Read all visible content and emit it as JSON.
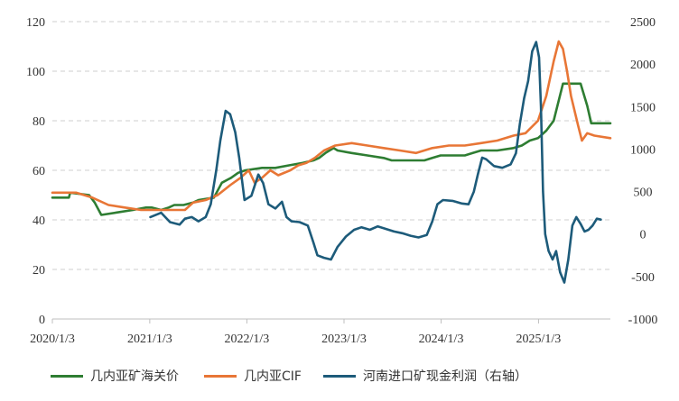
{
  "chart_data": {
    "type": "line",
    "x_axis": {
      "labels": [
        "2020/1/3",
        "2021/1/3",
        "2022/1/3",
        "2023/1/3",
        "2024/1/3",
        "2025/1/3"
      ],
      "start": "2020-01-03",
      "end": "2025-09-30"
    },
    "y_left": {
      "min": 0,
      "max": 120,
      "step": 20
    },
    "y_right": {
      "min": -1000,
      "max": 2500,
      "step": 500
    },
    "grid": "horizontal dashed",
    "legend_position": "bottom",
    "series": [
      {
        "name": "几内亚矿海关价",
        "axis": "left",
        "color": "#2e7d32",
        "points": [
          [
            "2020-01-03",
            49
          ],
          [
            "2020-03-05",
            49
          ],
          [
            "2020-03-10",
            51
          ],
          [
            "2020-05-20",
            50
          ],
          [
            "2020-06-10",
            47
          ],
          [
            "2020-07-05",
            42
          ],
          [
            "2020-09-01",
            43
          ],
          [
            "2020-11-01",
            44
          ],
          [
            "2020-12-20",
            45
          ],
          [
            "2021-01-10",
            45
          ],
          [
            "2021-02-15",
            44
          ],
          [
            "2021-03-15",
            45
          ],
          [
            "2021-04-05",
            46
          ],
          [
            "2021-05-10",
            46
          ],
          [
            "2021-06-15",
            47
          ],
          [
            "2021-07-05",
            48
          ],
          [
            "2021-09-01",
            49
          ],
          [
            "2021-10-01",
            55
          ],
          [
            "2021-11-05",
            57
          ],
          [
            "2021-12-01",
            59
          ],
          [
            "2021-12-28",
            60
          ],
          [
            "2022-03-01",
            61
          ],
          [
            "2022-04-20",
            61
          ],
          [
            "2022-06-10",
            62
          ],
          [
            "2022-08-01",
            63
          ],
          [
            "2022-09-10",
            64
          ],
          [
            "2022-10-01",
            65
          ],
          [
            "2022-10-25",
            67
          ],
          [
            "2022-11-25",
            69
          ],
          [
            "2022-12-10",
            68
          ],
          [
            "2023-02-01",
            67
          ],
          [
            "2023-04-01",
            66
          ],
          [
            "2023-06-01",
            65
          ],
          [
            "2023-07-01",
            64
          ],
          [
            "2023-09-01",
            64
          ],
          [
            "2023-11-01",
            64
          ],
          [
            "2023-12-01",
            65
          ],
          [
            "2024-01-01",
            66
          ],
          [
            "2024-03-01",
            66
          ],
          [
            "2024-04-01",
            66
          ],
          [
            "2024-05-01",
            67
          ],
          [
            "2024-06-01",
            68
          ],
          [
            "2024-08-01",
            68
          ],
          [
            "2024-10-01",
            69
          ],
          [
            "2024-11-01",
            70
          ],
          [
            "2024-12-01",
            72
          ],
          [
            "2025-01-01",
            73
          ],
          [
            "2025-02-01",
            76
          ],
          [
            "2025-03-01",
            80
          ],
          [
            "2025-04-05",
            95
          ],
          [
            "2025-06-10",
            95
          ],
          [
            "2025-07-05",
            86
          ],
          [
            "2025-07-20",
            79
          ],
          [
            "2025-09-30",
            79
          ]
        ]
      },
      {
        "name": "几内亚CIF",
        "axis": "left",
        "color": "#e87636",
        "points": [
          [
            "2020-01-03",
            51
          ],
          [
            "2020-04-01",
            51
          ],
          [
            "2020-06-01",
            49
          ],
          [
            "2020-08-01",
            46
          ],
          [
            "2020-10-01",
            45
          ],
          [
            "2020-12-01",
            44
          ],
          [
            "2021-01-15",
            44
          ],
          [
            "2021-03-01",
            44
          ],
          [
            "2021-04-01",
            44
          ],
          [
            "2021-05-15",
            44
          ],
          [
            "2021-06-15",
            47
          ],
          [
            "2021-08-01",
            48
          ],
          [
            "2021-09-15",
            50
          ],
          [
            "2021-11-01",
            54
          ],
          [
            "2021-12-10",
            57
          ],
          [
            "2022-01-10",
            60
          ],
          [
            "2022-02-01",
            55
          ],
          [
            "2022-03-01",
            57
          ],
          [
            "2022-04-01",
            60
          ],
          [
            "2022-05-01",
            58
          ],
          [
            "2022-06-15",
            60
          ],
          [
            "2022-07-15",
            62
          ],
          [
            "2022-08-15",
            63
          ],
          [
            "2022-09-15",
            65
          ],
          [
            "2022-10-20",
            68
          ],
          [
            "2022-12-01",
            70
          ],
          [
            "2023-02-01",
            71
          ],
          [
            "2023-04-01",
            70
          ],
          [
            "2023-06-01",
            69
          ],
          [
            "2023-08-01",
            68
          ],
          [
            "2023-10-01",
            67
          ],
          [
            "2023-12-01",
            69
          ],
          [
            "2024-02-01",
            70
          ],
          [
            "2024-04-01",
            70
          ],
          [
            "2024-06-01",
            71
          ],
          [
            "2024-08-01",
            72
          ],
          [
            "2024-10-01",
            74
          ],
          [
            "2024-11-15",
            75
          ],
          [
            "2025-01-01",
            80
          ],
          [
            "2025-02-01",
            90
          ],
          [
            "2025-03-01",
            104
          ],
          [
            "2025-03-20",
            112
          ],
          [
            "2025-04-05",
            109
          ],
          [
            "2025-04-20",
            100
          ],
          [
            "2025-05-05",
            90
          ],
          [
            "2025-06-01",
            78
          ],
          [
            "2025-06-15",
            72
          ],
          [
            "2025-07-05",
            75
          ],
          [
            "2025-08-01",
            74
          ],
          [
            "2025-09-30",
            73
          ]
        ]
      },
      {
        "name": "河南进口矿现金利润（右轴）",
        "axis": "right",
        "color": "#1d5b7a",
        "points": [
          [
            "2021-01-05",
            200
          ],
          [
            "2021-02-15",
            250
          ],
          [
            "2021-03-20",
            140
          ],
          [
            "2021-04-25",
            110
          ],
          [
            "2021-05-15",
            180
          ],
          [
            "2021-06-10",
            200
          ],
          [
            "2021-07-05",
            150
          ],
          [
            "2021-08-01",
            200
          ],
          [
            "2021-08-20",
            350
          ],
          [
            "2021-09-10",
            750
          ],
          [
            "2021-09-25",
            1100
          ],
          [
            "2021-10-15",
            1450
          ],
          [
            "2021-11-01",
            1410
          ],
          [
            "2021-11-20",
            1200
          ],
          [
            "2021-12-05",
            900
          ],
          [
            "2021-12-25",
            400
          ],
          [
            "2022-01-20",
            450
          ],
          [
            "2022-02-15",
            700
          ],
          [
            "2022-03-05",
            600
          ],
          [
            "2022-03-25",
            350
          ],
          [
            "2022-04-20",
            300
          ],
          [
            "2022-05-15",
            380
          ],
          [
            "2022-06-01",
            200
          ],
          [
            "2022-06-20",
            150
          ],
          [
            "2022-07-20",
            140
          ],
          [
            "2022-08-20",
            100
          ],
          [
            "2022-09-10",
            -100
          ],
          [
            "2022-09-25",
            -250
          ],
          [
            "2022-10-20",
            -280
          ],
          [
            "2022-11-15",
            -300
          ],
          [
            "2022-12-10",
            -150
          ],
          [
            "2023-01-10",
            -30
          ],
          [
            "2023-02-10",
            50
          ],
          [
            "2023-03-10",
            80
          ],
          [
            "2023-04-10",
            50
          ],
          [
            "2023-05-10",
            90
          ],
          [
            "2023-06-10",
            60
          ],
          [
            "2023-07-10",
            30
          ],
          [
            "2023-08-10",
            10
          ],
          [
            "2023-09-10",
            -20
          ],
          [
            "2023-10-10",
            -40
          ],
          [
            "2023-11-10",
            -10
          ],
          [
            "2023-12-01",
            150
          ],
          [
            "2023-12-20",
            350
          ],
          [
            "2024-01-10",
            400
          ],
          [
            "2024-02-15",
            390
          ],
          [
            "2024-03-20",
            360
          ],
          [
            "2024-04-15",
            350
          ],
          [
            "2024-05-05",
            500
          ],
          [
            "2024-05-20",
            700
          ],
          [
            "2024-06-05",
            900
          ],
          [
            "2024-06-20",
            880
          ],
          [
            "2024-07-20",
            800
          ],
          [
            "2024-08-20",
            780
          ],
          [
            "2024-09-20",
            820
          ],
          [
            "2024-10-10",
            950
          ],
          [
            "2024-10-25",
            1300
          ],
          [
            "2024-11-10",
            1600
          ],
          [
            "2024-11-25",
            1800
          ],
          [
            "2024-12-10",
            2150
          ],
          [
            "2024-12-25",
            2260
          ],
          [
            "2025-01-05",
            2080
          ],
          [
            "2025-01-12",
            1500
          ],
          [
            "2025-01-20",
            500
          ],
          [
            "2025-01-28",
            0
          ],
          [
            "2025-02-10",
            -200
          ],
          [
            "2025-02-25",
            -300
          ],
          [
            "2025-03-10",
            -200
          ],
          [
            "2025-03-25",
            -450
          ],
          [
            "2025-04-10",
            -570
          ],
          [
            "2025-04-25",
            -300
          ],
          [
            "2025-05-10",
            100
          ],
          [
            "2025-05-25",
            200
          ],
          [
            "2025-06-10",
            120
          ],
          [
            "2025-06-25",
            30
          ],
          [
            "2025-07-10",
            50
          ],
          [
            "2025-07-25",
            100
          ],
          [
            "2025-08-10",
            180
          ],
          [
            "2025-08-25",
            170
          ]
        ]
      }
    ]
  }
}
